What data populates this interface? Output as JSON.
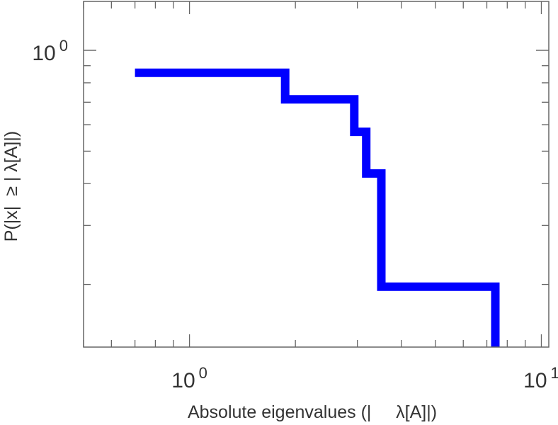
{
  "chart_data": {
    "type": "line",
    "subtype": "step",
    "xlabel": "Absolute eigenvalues (|     λ[A]|)",
    "ylabel": "P(|x|  ≥ | λ[A]|)",
    "xscale": "log",
    "yscale": "log",
    "xlim": [
      0.5,
      10.5
    ],
    "ylim": [
      0.13,
      1.4
    ],
    "grid": false,
    "x_ticks": [
      {
        "value": 1,
        "base": "10",
        "exp": "0"
      },
      {
        "value": 10,
        "base": "10",
        "exp": "1"
      }
    ],
    "y_ticks": [
      {
        "value": 1,
        "base": "10",
        "exp": "0"
      }
    ],
    "series": [
      {
        "color": "#0000ff",
        "points": [
          [
            0.7,
            0.857
          ],
          [
            1.87,
            0.857
          ],
          [
            1.87,
            0.714
          ],
          [
            2.94,
            0.714
          ],
          [
            2.94,
            0.571
          ],
          [
            3.18,
            0.571
          ],
          [
            3.18,
            0.429
          ],
          [
            3.51,
            0.429
          ],
          [
            3.51,
            0.197
          ],
          [
            7.4,
            0.197
          ],
          [
            7.4,
            0.13
          ]
        ]
      }
    ]
  }
}
